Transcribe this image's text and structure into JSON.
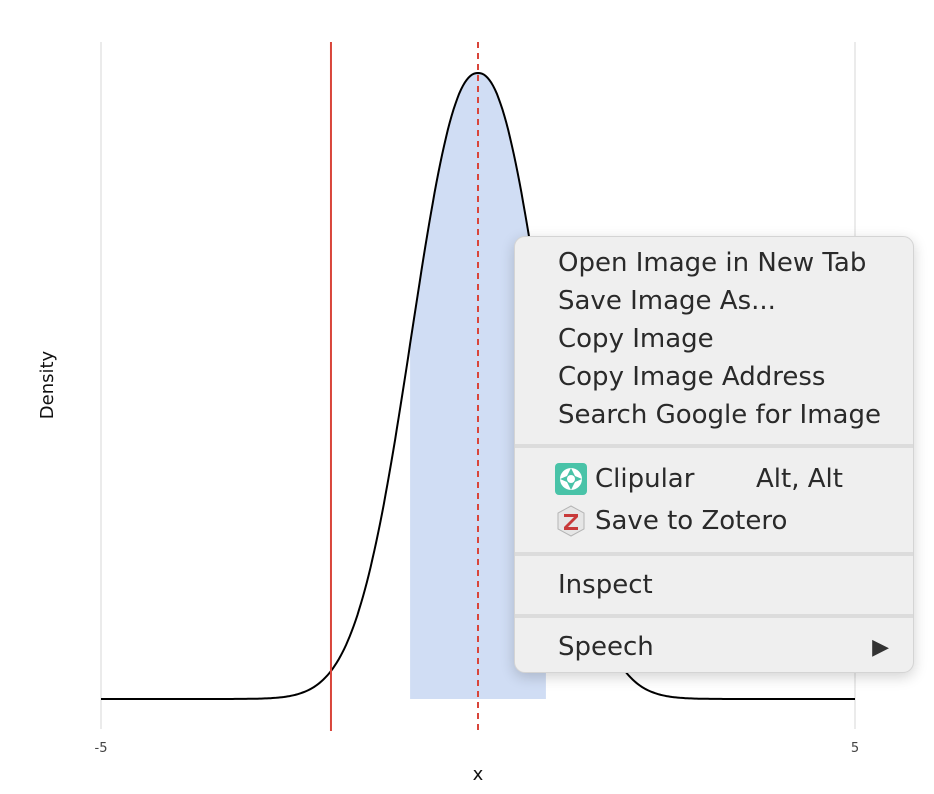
{
  "chart_data": {
    "type": "area",
    "xlabel": "x",
    "ylabel": "Density",
    "x_ticks": [
      "-5",
      "5"
    ],
    "xlim": [
      -5,
      5
    ],
    "grid": true,
    "density_curve": {
      "mean": 0,
      "sd": 0.85,
      "shape": 2.2
    },
    "shaded_interval": [
      -0.9,
      0.9
    ],
    "shaded_color": "#d0ddf4",
    "vlines": [
      {
        "x": -1.95,
        "style": "solid",
        "color": "#d9453a"
      },
      {
        "x": 0.0,
        "style": "dashed",
        "color": "#d9453a"
      }
    ]
  },
  "context_menu": {
    "open_new_tab": "Open Image in New Tab",
    "save_as": "Save Image As...",
    "copy_image": "Copy Image",
    "copy_address": "Copy Image Address",
    "search_google": "Search Google for Image",
    "clipular": "Clipular",
    "clipular_shortcut": "Alt, Alt",
    "clipular_icon": "clipular-aperture-icon",
    "zotero": "Save to Zotero",
    "zotero_icon": "zotero-z-icon",
    "inspect": "Inspect",
    "speech": "Speech",
    "speech_arrow": "▶"
  }
}
